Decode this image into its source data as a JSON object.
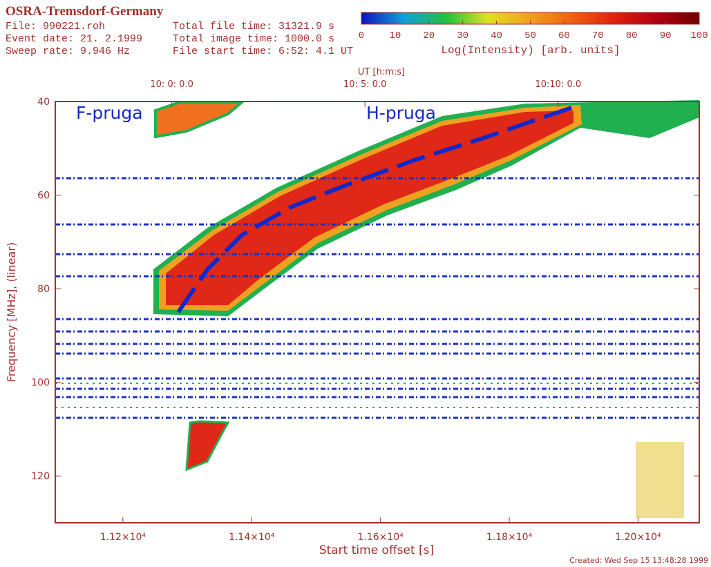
{
  "chart_data": {
    "type": "spectrogram",
    "title": "OSRA-Tremsdorf-Germany",
    "info": [
      "File: 990221.roh",
      "Event date: 21. 2.1999",
      "Sweep rate: 9.946 Hz",
      "Total file time: 31321.9 s",
      "Total image time: 1000.0 s",
      "File start time:  6:52: 4.1 UT"
    ],
    "footer": "Created: Wed Sep 15 13:48:28 1999",
    "xlabel": "Start time offset [s]",
    "ylabel": "Frequency [MHz], (linear)",
    "x2label": "UT [h:m:s]",
    "xlim": [
      11095,
      12095
    ],
    "xticks": [
      {
        "value": 11200,
        "label": "1.12×10⁴"
      },
      {
        "value": 11400,
        "label": "1.14×10⁴"
      },
      {
        "value": 11600,
        "label": "1.16×10⁴"
      },
      {
        "value": 11800,
        "label": "1.18×10⁴"
      },
      {
        "value": 12000,
        "label": "1.20×10⁴"
      }
    ],
    "x2ticks": [
      {
        "value": 11275.9,
        "label": "10: 0: 0.0"
      },
      {
        "value": 11575.9,
        "label": "10: 5: 0.0"
      },
      {
        "value": 11875.9,
        "label": "10:10: 0.0"
      }
    ],
    "ylim": [
      130,
      40
    ],
    "yticks": [
      40,
      60,
      80,
      100,
      120
    ],
    "annotations": [
      "F-pruga",
      "H-pruga"
    ],
    "series": [
      {
        "color": "#1428c8",
        "x": [
          11286,
          11331,
          11385,
          11460,
          11546,
          11653,
          11760,
          11846,
          11910
        ],
        "values": [
          85.0,
          75.9,
          68.5,
          62.6,
          57.9,
          52.5,
          47.8,
          43.7,
          40.7
        ]
      }
    ],
    "colorbar": {
      "label": "Log(Intensity) [arb. units]",
      "lim": [
        0,
        100
      ],
      "ticks": [
        0,
        10,
        20,
        30,
        40,
        50,
        60,
        70,
        80,
        90,
        100
      ],
      "colors": [
        "#1010c0",
        "#10a0e0",
        "#20c040",
        "#e0e020",
        "#f0a020",
        "#f06010",
        "#e02010",
        "#b00010",
        "#700000"
      ]
    }
  }
}
